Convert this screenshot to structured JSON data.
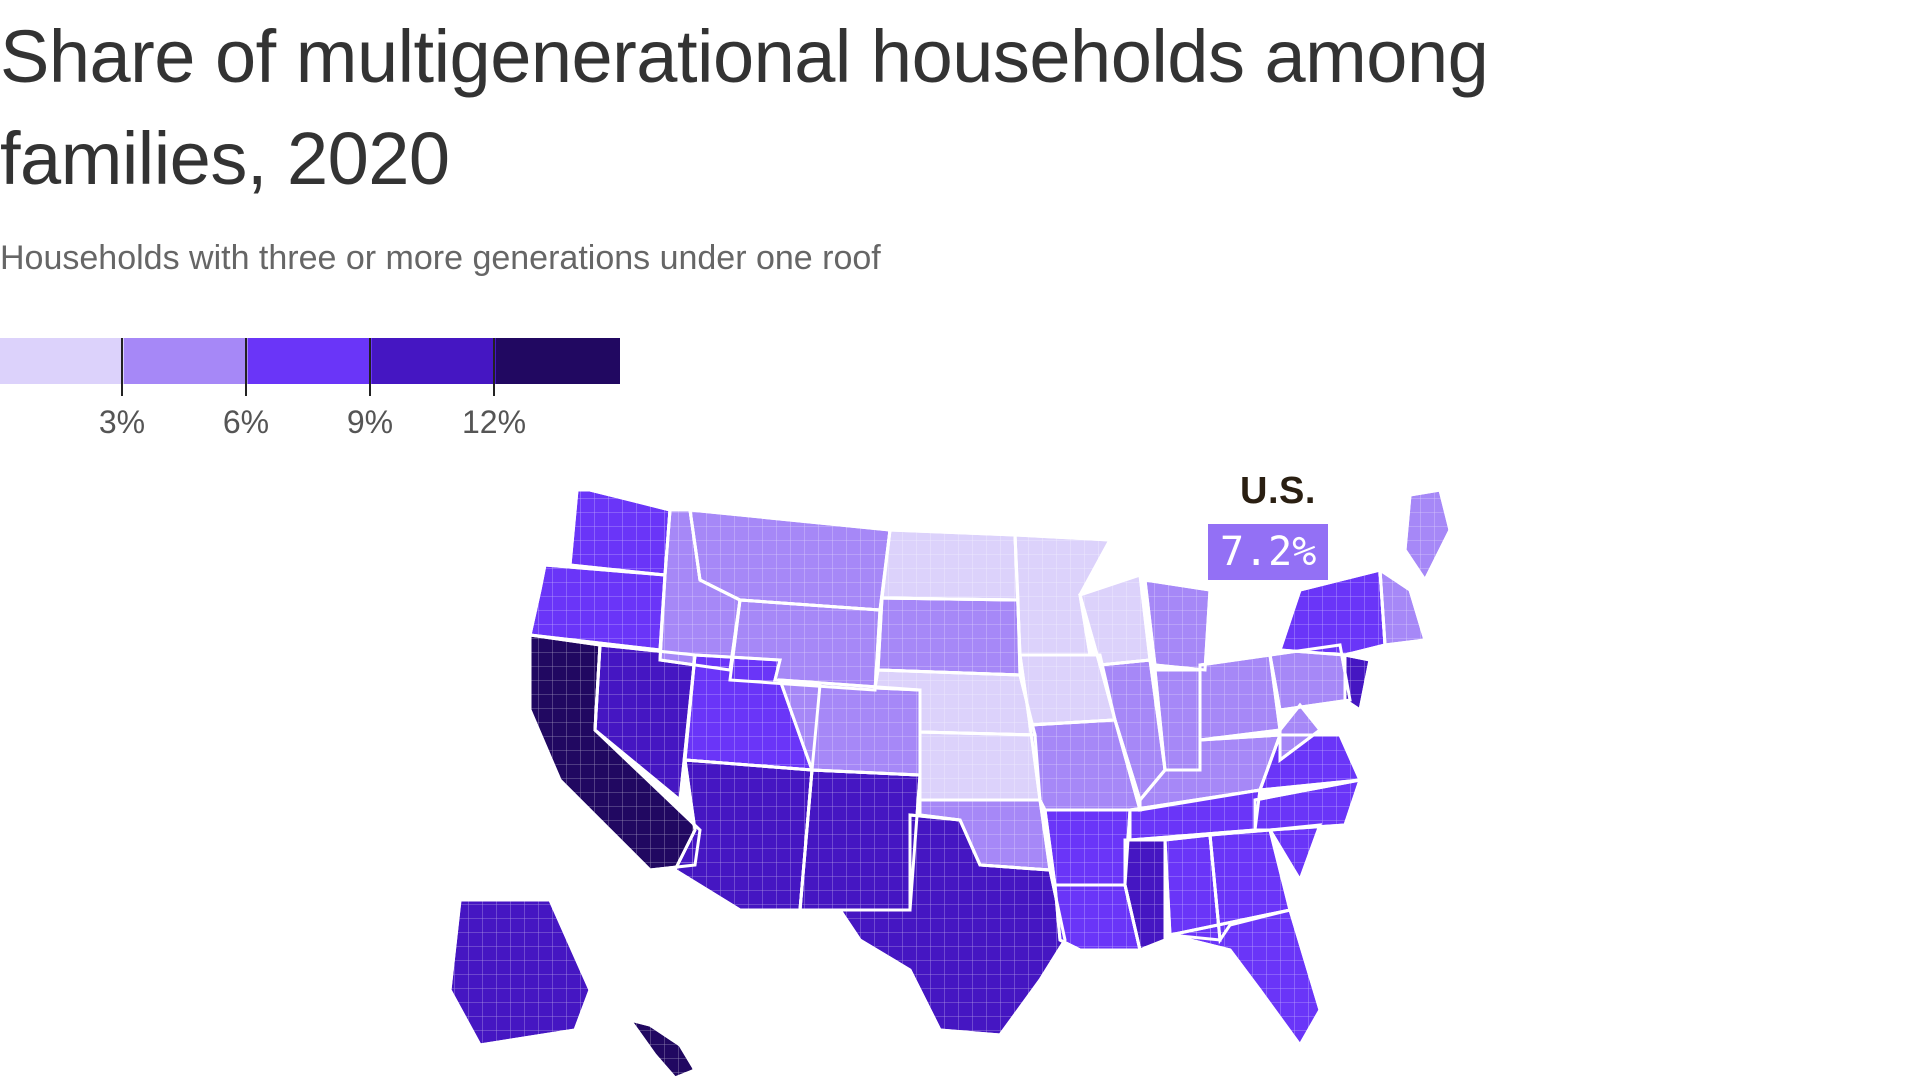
{
  "title": "Share of multigenerational households among families, 2020",
  "subtitle": "Households with three or more generations under one roof",
  "legend": {
    "colors": [
      "#dcd2fb",
      "#a688f7",
      "#6a35f8",
      "#4516c2",
      "#210861"
    ],
    "ticks": [
      "3%",
      "6%",
      "9%",
      "12%"
    ]
  },
  "callout": {
    "label": "U.S.",
    "value": "7.2%",
    "color": "#9370f5"
  },
  "map": {
    "regions": [
      {
        "name": "WA",
        "level": 2
      },
      {
        "name": "OR",
        "level": 2
      },
      {
        "name": "CA",
        "level": 4
      },
      {
        "name": "NV",
        "level": 3
      },
      {
        "name": "ID",
        "level": 1
      },
      {
        "name": "MT",
        "level": 1
      },
      {
        "name": "WY",
        "level": 1
      },
      {
        "name": "UT",
        "level": 2
      },
      {
        "name": "AZ",
        "level": 3
      },
      {
        "name": "NM",
        "level": 3
      },
      {
        "name": "CO",
        "level": 1
      },
      {
        "name": "ND",
        "level": 0
      },
      {
        "name": "SD",
        "level": 1
      },
      {
        "name": "NE",
        "level": 0
      },
      {
        "name": "KS",
        "level": 0
      },
      {
        "name": "OK",
        "level": 1
      },
      {
        "name": "TX",
        "level": 3
      },
      {
        "name": "MN",
        "level": 0
      },
      {
        "name": "IA",
        "level": 0
      },
      {
        "name": "MO",
        "level": 1
      },
      {
        "name": "AR",
        "level": 2
      },
      {
        "name": "LA",
        "level": 2
      },
      {
        "name": "WI",
        "level": 0
      },
      {
        "name": "IL",
        "level": 1
      },
      {
        "name": "MI",
        "level": 1
      },
      {
        "name": "IN",
        "level": 1
      },
      {
        "name": "OH",
        "level": 1
      },
      {
        "name": "KY",
        "level": 1
      },
      {
        "name": "TN",
        "level": 2
      },
      {
        "name": "MS",
        "level": 3
      },
      {
        "name": "AL",
        "level": 2
      },
      {
        "name": "GA",
        "level": 2
      },
      {
        "name": "FL",
        "level": 2
      },
      {
        "name": "SC",
        "level": 2
      },
      {
        "name": "NC",
        "level": 2
      },
      {
        "name": "VA",
        "level": 2
      },
      {
        "name": "WV",
        "level": 1
      },
      {
        "name": "PA",
        "level": 1
      },
      {
        "name": "NY",
        "level": 2
      },
      {
        "name": "NJ",
        "level": 3
      },
      {
        "name": "NE-states",
        "level": 1
      },
      {
        "name": "ME",
        "level": 1
      },
      {
        "name": "AK",
        "level": 3
      },
      {
        "name": "HI",
        "level": 4
      }
    ]
  }
}
